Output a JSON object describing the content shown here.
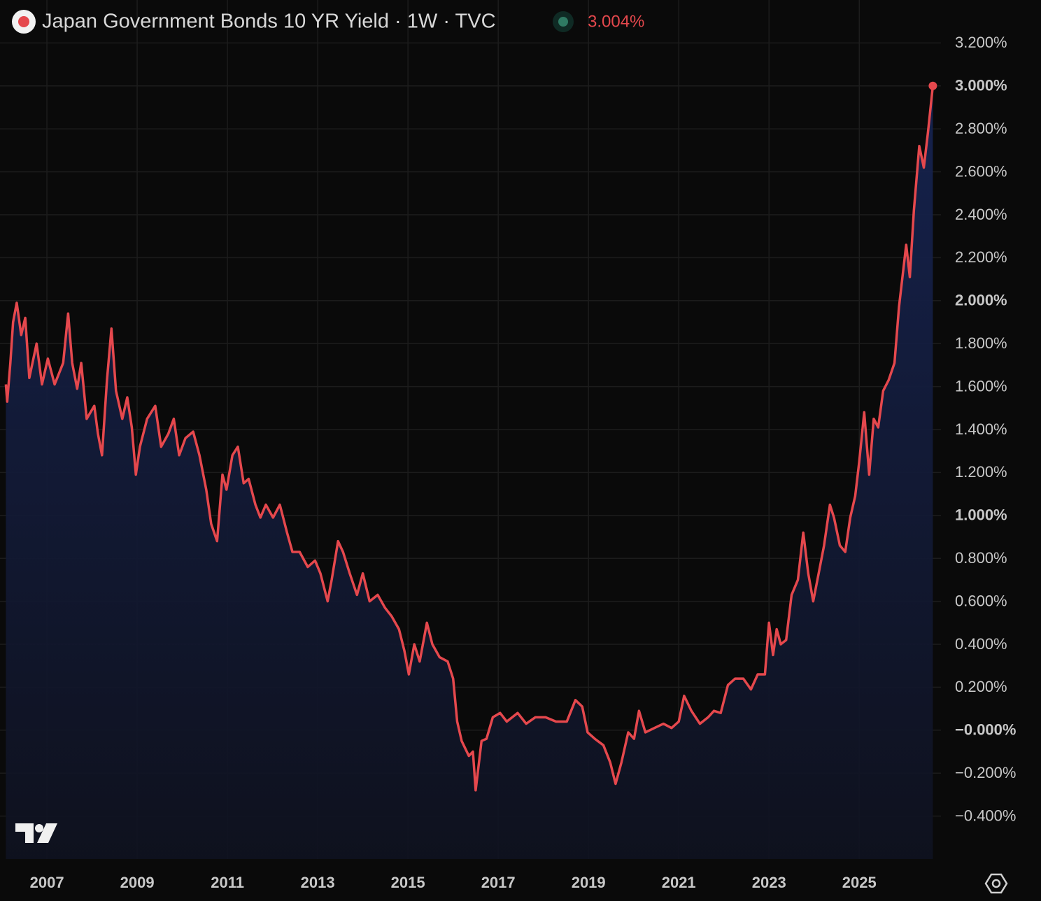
{
  "chart_data": {
    "type": "line",
    "title": "Japan Government Bonds 10 YR Yield · 1W · TVC",
    "last_value_label": "3.004%",
    "x": [
      2006.09,
      2006.12,
      2006.19,
      2006.25,
      2006.33,
      2006.43,
      2006.52,
      2006.61,
      2006.77,
      2006.89,
      2007.02,
      2007.17,
      2007.36,
      2007.47,
      2007.56,
      2007.67,
      2007.76,
      2007.88,
      2008.05,
      2008.13,
      2008.22,
      2008.33,
      2008.43,
      2008.53,
      2008.67,
      2008.78,
      2008.88,
      2008.97,
      2009.06,
      2009.22,
      2009.4,
      2009.53,
      2009.69,
      2009.81,
      2009.93,
      2010.07,
      2010.24,
      2010.38,
      2010.53,
      2010.64,
      2010.77,
      2010.89,
      2010.98,
      2011.11,
      2011.23,
      2011.36,
      2011.47,
      2011.62,
      2011.73,
      2011.85,
      2012.01,
      2012.16,
      2012.32,
      2012.44,
      2012.6,
      2012.78,
      2012.94,
      2013.06,
      2013.22,
      2013.31,
      2013.45,
      2013.56,
      2013.71,
      2013.87,
      2014.0,
      2014.15,
      2014.33,
      2014.49,
      2014.64,
      2014.8,
      2014.92,
      2015.02,
      2015.14,
      2015.26,
      2015.42,
      2015.54,
      2015.7,
      2015.88,
      2016.0,
      2016.09,
      2016.19,
      2016.35,
      2016.44,
      2016.5,
      2016.63,
      2016.74,
      2016.88,
      2017.04,
      2017.19,
      2017.43,
      2017.62,
      2017.82,
      2018.05,
      2018.28,
      2018.52,
      2018.71,
      2018.86,
      2018.98,
      2019.14,
      2019.33,
      2019.48,
      2019.6,
      2019.73,
      2019.88,
      2020.01,
      2020.12,
      2020.26,
      2020.46,
      2020.66,
      2020.84,
      2021.0,
      2021.12,
      2021.28,
      2021.47,
      2021.65,
      2021.78,
      2021.93,
      2022.09,
      2022.25,
      2022.43,
      2022.6,
      2022.75,
      2022.91,
      2023.0,
      2023.09,
      2023.17,
      2023.26,
      2023.38,
      2023.5,
      2023.64,
      2023.76,
      2023.87,
      2023.98,
      2024.1,
      2024.22,
      2024.35,
      2024.44,
      2024.57,
      2024.69,
      2024.8,
      2024.91,
      2025.0,
      2025.11,
      2025.22,
      2025.32,
      2025.42,
      2025.53,
      2025.65,
      2025.78,
      2025.88,
      2026.04,
      2026.12,
      2026.21,
      2026.33,
      2026.43,
      2026.52,
      2026.63
    ],
    "series": [
      {
        "name": "Japan Government Bonds 10 YR Yield",
        "color": "#e5484d",
        "values": [
          1.61,
          1.53,
          1.71,
          1.9,
          1.99,
          1.84,
          1.92,
          1.64,
          1.8,
          1.61,
          1.73,
          1.61,
          1.71,
          1.94,
          1.71,
          1.59,
          1.71,
          1.45,
          1.51,
          1.38,
          1.28,
          1.63,
          1.87,
          1.58,
          1.45,
          1.55,
          1.41,
          1.19,
          1.32,
          1.45,
          1.51,
          1.32,
          1.38,
          1.45,
          1.28,
          1.36,
          1.39,
          1.28,
          1.12,
          0.96,
          0.88,
          1.19,
          1.12,
          1.28,
          1.32,
          1.15,
          1.17,
          1.05,
          0.99,
          1.05,
          0.99,
          1.05,
          0.92,
          0.83,
          0.83,
          0.76,
          0.79,
          0.73,
          0.6,
          0.7,
          0.88,
          0.83,
          0.73,
          0.63,
          0.73,
          0.6,
          0.63,
          0.57,
          0.53,
          0.47,
          0.37,
          0.26,
          0.4,
          0.32,
          0.5,
          0.4,
          0.34,
          0.32,
          0.24,
          0.04,
          -0.05,
          -0.12,
          -0.1,
          -0.28,
          -0.05,
          -0.04,
          0.06,
          0.08,
          0.04,
          0.08,
          0.03,
          0.06,
          0.06,
          0.04,
          0.04,
          0.14,
          0.11,
          -0.01,
          -0.04,
          -0.07,
          -0.15,
          -0.25,
          -0.15,
          -0.01,
          -0.04,
          0.09,
          -0.01,
          0.01,
          0.03,
          0.01,
          0.04,
          0.16,
          0.09,
          0.03,
          0.06,
          0.09,
          0.08,
          0.21,
          0.24,
          0.24,
          0.19,
          0.26,
          0.26,
          0.5,
          0.35,
          0.47,
          0.4,
          0.42,
          0.63,
          0.7,
          0.92,
          0.73,
          0.6,
          0.73,
          0.86,
          1.05,
          0.99,
          0.86,
          0.83,
          0.99,
          1.09,
          1.25,
          1.48,
          1.19,
          1.45,
          1.41,
          1.58,
          1.63,
          1.71,
          1.97,
          2.26,
          2.11,
          2.42,
          2.72,
          2.62,
          2.78,
          3.0
        ]
      }
    ],
    "xlim": [
      2005.96,
      2026.81
    ],
    "xticks": [
      2007,
      2009,
      2011,
      2013,
      2015,
      2017,
      2019,
      2021,
      2023,
      2025
    ],
    "ylim": [
      -0.6,
      3.4
    ],
    "yticks": [
      {
        "value": 3.2,
        "label": "3.200%"
      },
      {
        "value": 3,
        "label": "3.000%"
      },
      {
        "value": 2.8,
        "label": "2.800%"
      },
      {
        "value": 2.6,
        "label": "2.600%"
      },
      {
        "value": 2.4,
        "label": "2.400%"
      },
      {
        "value": 2.2,
        "label": "2.200%"
      },
      {
        "value": 2,
        "label": "2.000%"
      },
      {
        "value": 1.8,
        "label": "1.800%"
      },
      {
        "value": 1.6,
        "label": "1.600%"
      },
      {
        "value": 1.4,
        "label": "1.400%"
      },
      {
        "value": 1.2,
        "label": "1.200%"
      },
      {
        "value": 1,
        "label": "1.000%"
      },
      {
        "value": 0.8,
        "label": "0.800%"
      },
      {
        "value": 0.6,
        "label": "0.600%"
      },
      {
        "value": 0.4,
        "label": "0.400%"
      },
      {
        "value": 0.2,
        "label": "0.200%"
      },
      {
        "value": 0,
        "label": "−0.000%"
      },
      {
        "value": -0.2,
        "label": "−0.200%"
      },
      {
        "value": -0.4,
        "label": "−0.400%"
      }
    ],
    "grid": true
  }
}
